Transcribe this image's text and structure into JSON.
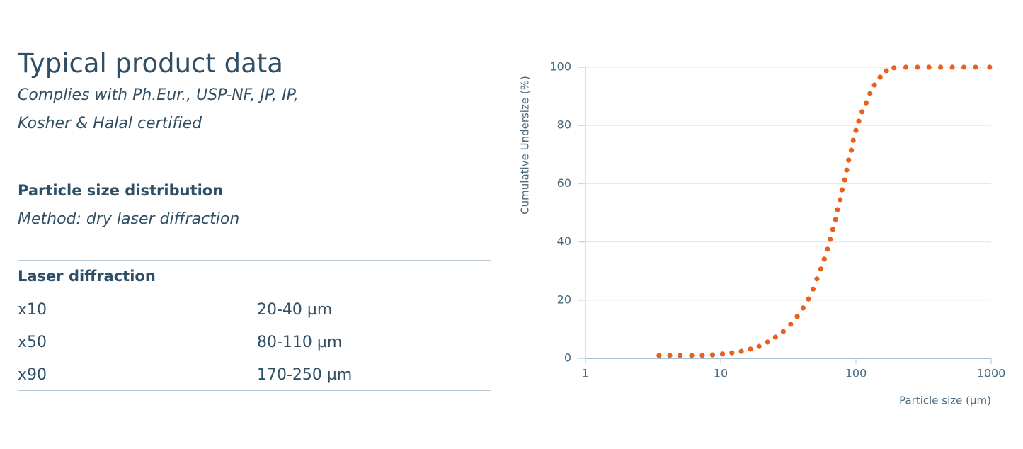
{
  "header": {
    "title": "Typical product data",
    "subtitle_lines": [
      "Complies with Ph.Eur., USP-NF, JP, IP,",
      "Kosher & Halal certified"
    ]
  },
  "section": {
    "heading": "Particle size distribution",
    "method": "Method: dry laser diffraction"
  },
  "table": {
    "header": "Laser diffraction",
    "rows": [
      [
        "x10",
        "20-40 µm"
      ],
      [
        "x50",
        "80-110 µm"
      ],
      [
        "x90",
        "170-250 µm"
      ]
    ]
  },
  "chart_data": {
    "type": "scatter",
    "xlabel": "Particle size (µm)",
    "ylabel": "Cumulative Undersize (%)",
    "xscale": "log",
    "xlim": [
      1,
      1000
    ],
    "xticks": [
      1,
      10,
      100,
      1000
    ],
    "ylim": [
      0,
      100
    ],
    "yticks": [
      0,
      20,
      40,
      60,
      80,
      100
    ],
    "grid": true,
    "color": "#e8601c",
    "x": [
      3.5,
      4.2,
      5.0,
      6.1,
      7.3,
      8.7,
      10.3,
      12.1,
      14.2,
      16.6,
      19.2,
      22.2,
      25.4,
      29.0,
      32.9,
      36.8,
      40.7,
      44.6,
      48.2,
      51.5,
      55.1,
      58.3,
      61.7,
      64.5,
      67.5,
      70.6,
      73.0,
      76.4,
      79.0,
      82.6,
      85.5,
      88.4,
      92.5,
      95.5,
      100,
      105,
      111,
      119,
      127,
      137,
      151,
      168,
      191,
      234,
      285,
      347,
      423,
      516,
      629,
      767,
      975
    ],
    "values": [
      1.0,
      1.0,
      1.0,
      1.0,
      1.0,
      1.2,
      1.5,
      1.9,
      2.4,
      3.2,
      4.1,
      5.6,
      7.3,
      9.2,
      11.7,
      14.4,
      17.3,
      20.4,
      23.8,
      27.3,
      30.7,
      34.1,
      37.5,
      40.9,
      44.3,
      47.7,
      51.1,
      54.5,
      57.9,
      61.3,
      64.7,
      68.1,
      71.5,
      74.9,
      78.3,
      81.5,
      84.7,
      87.8,
      91.0,
      93.9,
      96.6,
      98.8,
      99.8,
      100,
      100,
      100,
      100,
      100,
      100,
      100,
      100
    ]
  }
}
